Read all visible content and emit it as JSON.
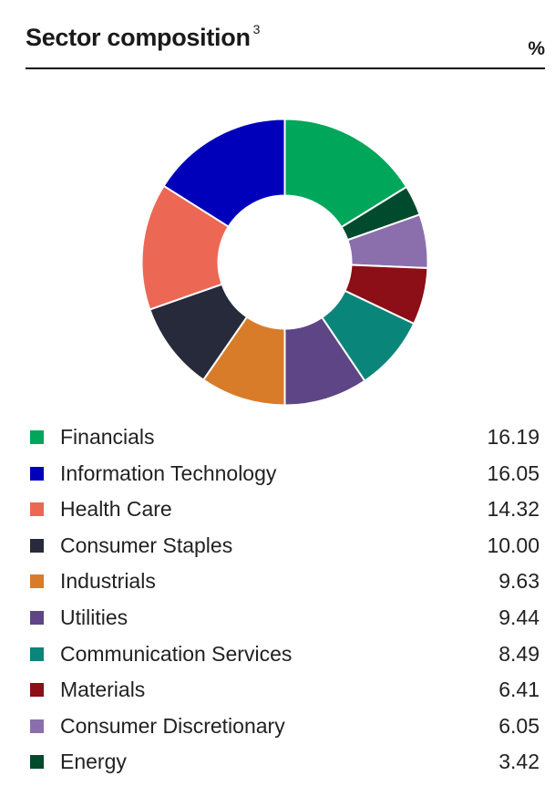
{
  "header": {
    "title": "Sector composition",
    "footnote": "3",
    "unit": "%"
  },
  "chart_data": {
    "type": "pie",
    "style": "donut",
    "title": "Sector composition",
    "unit": "%",
    "categories": [
      "Financials",
      "Information Technology",
      "Health Care",
      "Consumer Staples",
      "Industrials",
      "Utilities",
      "Communication Services",
      "Materials",
      "Consumer Discretionary",
      "Energy"
    ],
    "values": [
      16.19,
      16.05,
      14.32,
      10.0,
      9.63,
      9.44,
      8.49,
      6.41,
      6.05,
      3.42
    ],
    "value_labels": [
      "16.19",
      "16.05",
      "14.32",
      "10.00",
      "9.63",
      "9.44",
      "8.49",
      "6.41",
      "6.05",
      "3.42"
    ],
    "colors": [
      "#00a65a",
      "#0000bb",
      "#ed6755",
      "#272a3b",
      "#d97c2a",
      "#5e4585",
      "#0a857a",
      "#8c0e16",
      "#8b6fad",
      "#004a2d"
    ],
    "chart_order": [
      "Financials",
      "Energy",
      "Consumer Discretionary",
      "Materials",
      "Communication Services",
      "Utilities",
      "Industrials",
      "Consumer Staples",
      "Health Care",
      "Information Technology"
    ],
    "direction": "clockwise from top",
    "legend_position": "bottom"
  }
}
